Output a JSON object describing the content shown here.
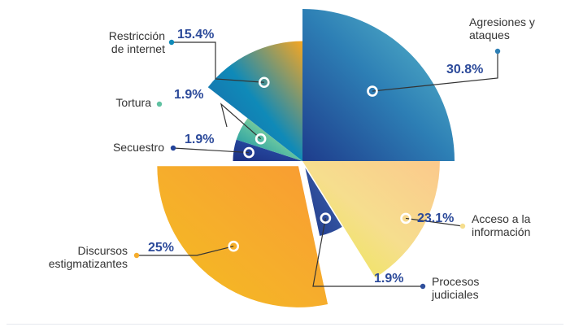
{
  "chart_data": {
    "type": "pie",
    "variant": "polar-area (radius varies by value)",
    "legend": "callout labels around the chart",
    "slices": [
      {
        "label": "Agresiones y ataques",
        "value": 30.8,
        "value_label": "30.8%",
        "label_lines": [
          "Agresiones y",
          "ataques"
        ],
        "colors": [
          "#1e3c8c",
          "#2d7fb5",
          "#5fbfcd"
        ]
      },
      {
        "label": "Acceso a la información",
        "value": 23.1,
        "value_label": "23.1%",
        "label_lines": [
          "Acceso a la",
          "información"
        ],
        "colors": [
          "#ebe94b",
          "#f6de8e",
          "#fbc98c"
        ]
      },
      {
        "label": "Procesos judiciales",
        "value": 1.9,
        "value_label": "1.9%",
        "label_lines": [
          "Procesos",
          "judiciales"
        ],
        "colors": [
          "#213a8b",
          "#2f4f9c",
          "#4b6fb6"
        ]
      },
      {
        "label": "Discursos estigmatizantes",
        "value": 25,
        "value_label": "25%",
        "label_lines": [
          "Discursos",
          "estigmatizantes"
        ],
        "colors": [
          "#f3bd1f",
          "#f6ad2c",
          "#f99b33"
        ]
      },
      {
        "label": "Secuestro",
        "value": 1.9,
        "value_label": "1.9%",
        "label_lines": [
          "Secuestro"
        ],
        "colors": [
          "#1b2f82",
          "#24449a",
          "#2e5aaa"
        ]
      },
      {
        "label": "Tortura",
        "value": 1.9,
        "value_label": "1.9%",
        "label_lines": [
          "Tortura"
        ],
        "colors": [
          "#0b8aa3",
          "#5fc1a1",
          "#e7ed6e"
        ]
      },
      {
        "label": "Restricción de internet",
        "value": 15.4,
        "value_label": "15.4%",
        "label_lines": [
          "Restricción",
          "de internet"
        ],
        "colors": [
          "#1d61a6",
          "#0f8ab8",
          "#f5a623"
        ]
      }
    ],
    "value_color": "#2c4a9a",
    "label_color": "#333333"
  }
}
